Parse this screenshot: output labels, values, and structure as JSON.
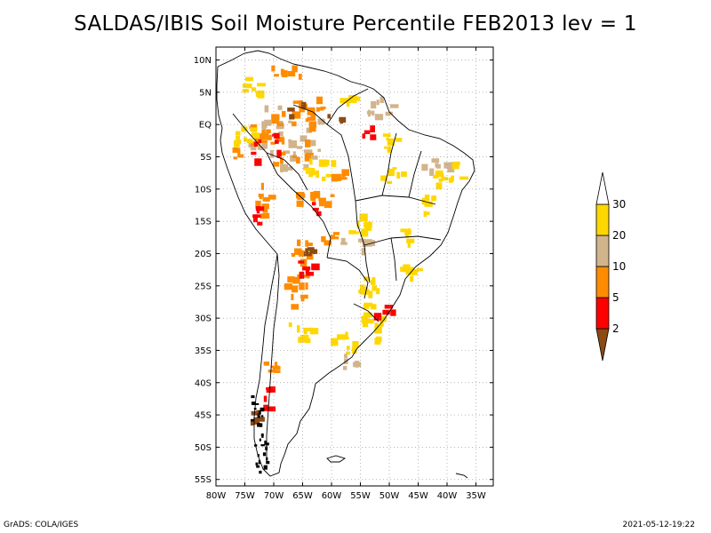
{
  "title": "SALDAS/IBIS Soil Moisture Percentile FEB2013 lev = 1",
  "footer": {
    "left": "GrADS: COLA/IGES",
    "right": "2021-05-12-19:22"
  },
  "map": {
    "region": "South America",
    "projection": "lat-lon",
    "lon_range": [
      -80,
      -32
    ],
    "lat_range": [
      -56,
      12
    ],
    "grid": true,
    "lat_ticks": [
      {
        "value": 10,
        "label": "10N"
      },
      {
        "value": 5,
        "label": "5N"
      },
      {
        "value": 0,
        "label": "EQ"
      },
      {
        "value": -5,
        "label": "5S"
      },
      {
        "value": -10,
        "label": "10S"
      },
      {
        "value": -15,
        "label": "15S"
      },
      {
        "value": -20,
        "label": "20S"
      },
      {
        "value": -25,
        "label": "25S"
      },
      {
        "value": -30,
        "label": "30S"
      },
      {
        "value": -35,
        "label": "35S"
      },
      {
        "value": -40,
        "label": "40S"
      },
      {
        "value": -45,
        "label": "45S"
      },
      {
        "value": -50,
        "label": "50S"
      },
      {
        "value": -55,
        "label": "55S"
      }
    ],
    "lon_ticks": [
      {
        "value": -80,
        "label": "80W"
      },
      {
        "value": -75,
        "label": "75W"
      },
      {
        "value": -70,
        "label": "70W"
      },
      {
        "value": -65,
        "label": "65W"
      },
      {
        "value": -60,
        "label": "60W"
      },
      {
        "value": -55,
        "label": "55W"
      },
      {
        "value": -50,
        "label": "50W"
      },
      {
        "value": -45,
        "label": "45W"
      },
      {
        "value": -40,
        "label": "40W"
      },
      {
        "value": -35,
        "label": "35W"
      }
    ]
  },
  "colorbar": {
    "levels": [
      "2",
      "5",
      "10",
      "20",
      "30"
    ],
    "colors": [
      "#8c4a14",
      "#ff0000",
      "#ff8c00",
      "#d2b48c",
      "#ffd700",
      "#ffffff"
    ]
  },
  "shading_colors": {
    "lt2": "#8c4a14",
    "2to5": "#ff0000",
    "5to10": "#ff8c00",
    "10to20": "#d2b48c",
    "20to30": "#ffd700",
    "gt30": "#ffffff"
  }
}
